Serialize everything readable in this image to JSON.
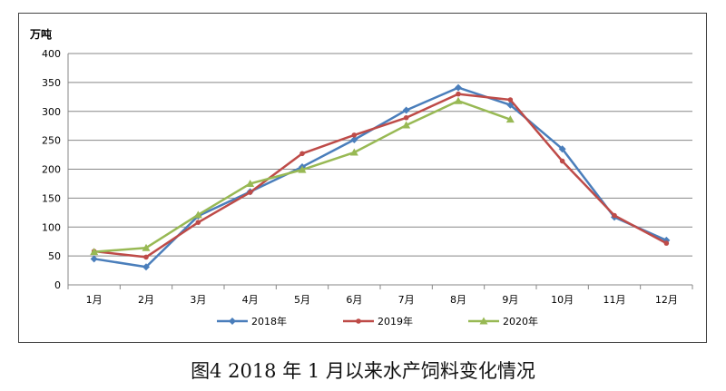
{
  "caption": "图4 2018 年 1 月以来水产饲料变化情况",
  "chart_data": {
    "type": "line",
    "ylabel": "万吨",
    "ylim": [
      0,
      400
    ],
    "yticks": [
      0,
      50,
      100,
      150,
      200,
      250,
      300,
      350,
      400
    ],
    "categories": [
      "1月",
      "2月",
      "3月",
      "4月",
      "5月",
      "6月",
      "7月",
      "8月",
      "9月",
      "10月",
      "11月",
      "12月"
    ],
    "grid": true,
    "legend_position": "bottom",
    "series": [
      {
        "name": "2018年",
        "color": "#4a7ebb",
        "marker": "diamond",
        "values": [
          45,
          31,
          119,
          161,
          204,
          251,
          302,
          341,
          311,
          235,
          117,
          77
        ]
      },
      {
        "name": "2019年",
        "color": "#be4b48",
        "marker": "circle",
        "values": [
          58,
          48,
          108,
          160,
          227,
          259,
          289,
          330,
          320,
          214,
          120,
          72
        ]
      },
      {
        "name": "2020年",
        "color": "#98b954",
        "marker": "triangle",
        "values": [
          57,
          64,
          121,
          175,
          199,
          229,
          276,
          318,
          286,
          null,
          null,
          null
        ]
      }
    ]
  }
}
